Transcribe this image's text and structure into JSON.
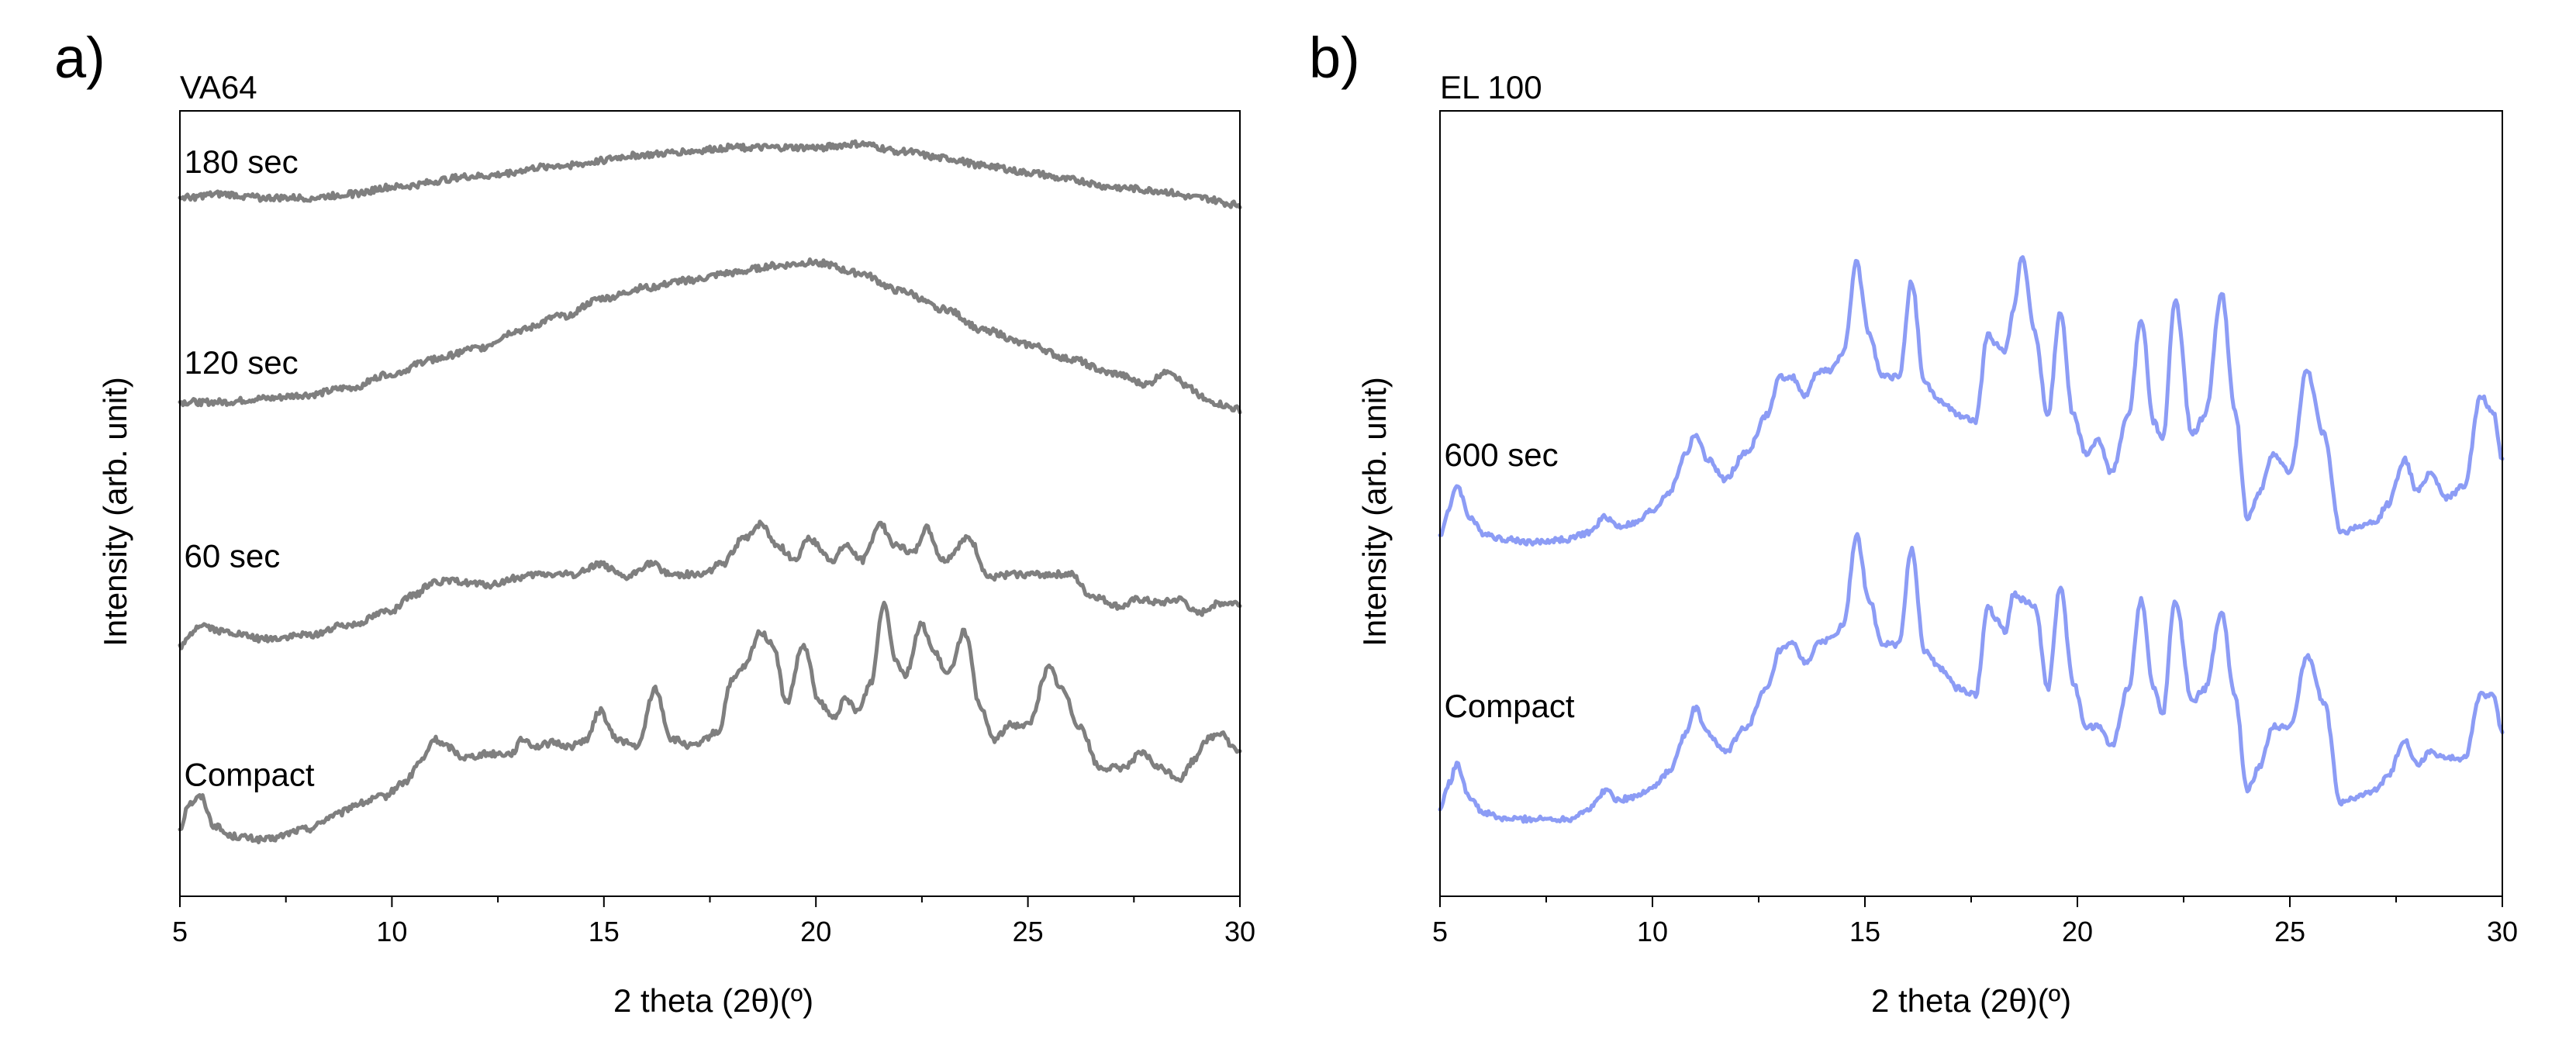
{
  "chart_data": [
    {
      "type": "line",
      "panel_label": "a)",
      "title": "VA64",
      "xlabel": "2 theta (2θ)(º)",
      "ylabel": "Intensity (arb. unit)",
      "xlim": [
        5,
        30
      ],
      "ylim": [
        0,
        100
      ],
      "xticks": [
        5,
        10,
        15,
        20,
        25,
        30
      ],
      "xtick_labels": [
        "5",
        "10",
        "15",
        "20",
        "25",
        "30"
      ],
      "yticks_shown": false,
      "color": "#7f7f7f",
      "series": [
        {
          "name": "Compact",
          "label_text": "Compact",
          "label_at": [
            5.1,
            11.5
          ],
          "x": [
            5,
            5.2,
            5.5,
            5.8,
            6.2,
            7,
            8,
            8.7,
            9.2,
            9.8,
            10.3,
            10.7,
            11.0,
            11.3,
            11.7,
            12.3,
            12.8,
            13.1,
            13.4,
            13.8,
            14.2,
            14.6,
            14.9,
            15.3,
            15.8,
            16.2,
            16.6,
            17.1,
            17.7,
            18.0,
            18.3,
            18.7,
            19.0,
            19.3,
            19.7,
            20.1,
            20.4,
            20.7,
            21.0,
            21.3,
            21.6,
            21.9,
            22.1,
            22.5,
            22.8,
            23.1,
            23.5,
            23.9,
            24.2,
            24.6,
            25.0,
            25.5,
            25.8,
            26.2,
            26.7,
            27.2,
            27.7,
            28.1,
            28.6,
            28.9,
            29.2,
            29.6,
            29.8,
            30
          ],
          "y": [
            5.5,
            9,
            10,
            6,
            4.5,
            4,
            5.5,
            7.5,
            9,
            10,
            12,
            15,
            18,
            17,
            15.5,
            16,
            16,
            18,
            17,
            17.5,
            17,
            18,
            22,
            18,
            17,
            25,
            18,
            17,
            19,
            26,
            28,
            33,
            31,
            23,
            31,
            23,
            21,
            23.5,
            22,
            26,
            37,
            29,
            27,
            34,
            30,
            27,
            33,
            22,
            18,
            20,
            20,
            28,
            25,
            20,
            14,
            14,
            16,
            14,
            12.5,
            15,
            18,
            19,
            17,
            16
          ]
        },
        {
          "name": "60 sec",
          "label_text": "60 sec",
          "label_at": [
            5.1,
            42
          ],
          "x": [
            5,
            5.5,
            6,
            7,
            8,
            9,
            10,
            10.5,
            11,
            11.5,
            12.3,
            13.0,
            13.5,
            14.3,
            14.9,
            15.5,
            16.1,
            16.6,
            17.3,
            17.8,
            18.3,
            18.7,
            19.1,
            19.5,
            19.8,
            20.4,
            20.7,
            21.1,
            21.5,
            21.9,
            22.3,
            22.6,
            23.0,
            23.6,
            24.1,
            24.6,
            25.2,
            25.5,
            26.0,
            26.5,
            27.2,
            27.6,
            28.1,
            28.6,
            29.0,
            29.5,
            30
          ],
          "y": [
            31,
            34,
            33,
            32,
            32.5,
            34,
            36,
            38,
            40,
            40,
            39.5,
            40.5,
            41,
            41,
            42.5,
            40.5,
            42.5,
            41,
            41,
            42.5,
            46,
            48,
            45,
            43,
            46,
            43,
            45,
            43,
            48,
            45,
            44,
            47.5,
            43,
            46,
            40.5,
            41,
            41,
            41,
            41,
            38,
            36.5,
            37.5,
            37,
            37.5,
            35.5,
            37,
            37
          ]
        },
        {
          "name": "120 sec",
          "label_text": "120 sec",
          "label_at": [
            5.1,
            69
          ],
          "x": [
            5,
            6,
            7,
            8,
            9,
            10,
            11,
            12,
            13,
            14,
            15,
            16,
            17,
            18,
            19,
            20,
            21,
            22,
            23,
            24,
            25,
            26,
            27,
            27.8,
            28.3,
            28.8,
            29.3,
            30
          ],
          "y": [
            65,
            65,
            65.5,
            66,
            67,
            69,
            71,
            72.5,
            75,
            77,
            79.5,
            81,
            82,
            83,
            84,
            84.5,
            83,
            80.5,
            78,
            75,
            73,
            71,
            69,
            67.5,
            69.5,
            67,
            65,
            64
          ]
        },
        {
          "name": "180 sec",
          "label_text": "180 sec",
          "label_at": [
            5.1,
            97
          ],
          "x": [
            5,
            6,
            7,
            8,
            9,
            10,
            12,
            14,
            16,
            17,
            18,
            19,
            20,
            21,
            22,
            23,
            24,
            25,
            26,
            27,
            28,
            29,
            30
          ],
          "y": [
            93.5,
            94,
            93.5,
            93.5,
            94,
            95,
            96.5,
            98,
            99.5,
            100,
            100.5,
            100.5,
            100.5,
            101,
            100,
            99,
            98,
            97,
            96,
            95,
            94.5,
            93.5,
            92.5
          ]
        }
      ]
    },
    {
      "type": "line",
      "panel_label": "b)",
      "title": "EL 100",
      "xlabel": "2 theta (2θ)(º)",
      "ylabel": "Intensity (arb. unit)",
      "xlim": [
        5,
        30
      ],
      "ylim": [
        0,
        100
      ],
      "xticks": [
        5,
        10,
        15,
        20,
        25,
        30
      ],
      "xtick_labels": [
        "5",
        "10",
        "15",
        "20",
        "25",
        "30"
      ],
      "yticks_shown": false,
      "color": "#8c9cf5",
      "series": [
        {
          "name": "Compact",
          "label_text": "Compact",
          "label_at": [
            5.1,
            19.5
          ],
          "x": [
            5,
            5.2,
            5.4,
            5.7,
            6.0,
            6.5,
            7.2,
            8.0,
            8.5,
            8.9,
            9.2,
            9.6,
            10.0,
            10.4,
            10.8,
            11.0,
            11.3,
            11.7,
            12.2,
            12.7,
            13.0,
            13.3,
            13.6,
            13.9,
            14.2,
            14.5,
            14.8,
            15.1,
            15.4,
            15.8,
            16.1,
            16.4,
            16.8,
            17.2,
            17.6,
            17.9,
            18.1,
            18.3,
            18.5,
            18.7,
            19.0,
            19.3,
            19.6,
            19.9,
            20.2,
            20.5,
            20.8,
            21.2,
            21.5,
            21.8,
            22.0,
            22.3,
            22.7,
            23.0,
            23.4,
            23.7,
            24.0,
            24.3,
            24.6,
            25.0,
            25.4,
            25.8,
            26.2,
            26.6,
            27.0,
            27.3,
            27.7,
            28.0,
            28.3,
            28.7,
            29.1,
            29.5,
            29.8,
            30
          ],
          "y": [
            5,
            9,
            12,
            7,
            4.5,
            3.5,
            3.5,
            3.5,
            5,
            8,
            6.5,
            7,
            8.5,
            11,
            17,
            21,
            17,
            14,
            18,
            24,
            30,
            31,
            28,
            31,
            32,
            34,
            48,
            38,
            31,
            31,
            46,
            30,
            27,
            24,
            23,
            37,
            35,
            33,
            39,
            38,
            37,
            24,
            40,
            25,
            18,
            18,
            15,
            24,
            38,
            24,
            20,
            38,
            22,
            24,
            36,
            23,
            8,
            12,
            18,
            18,
            29,
            22,
            6,
            7,
            8,
            10,
            16,
            12,
            14,
            13,
            13,
            23,
            23,
            17
          ]
        },
        {
          "name": "600 sec",
          "label_text": "600 sec",
          "label_at": [
            5.1,
            59
          ],
          "x": [
            5,
            5.2,
            5.4,
            5.7,
            6.0,
            6.5,
            7.2,
            8.0,
            8.5,
            8.9,
            9.2,
            9.6,
            10.0,
            10.4,
            10.8,
            11.0,
            11.3,
            11.7,
            12.2,
            12.7,
            13.0,
            13.3,
            13.6,
            13.9,
            14.2,
            14.5,
            14.8,
            15.1,
            15.4,
            15.8,
            16.1,
            16.4,
            16.8,
            17.2,
            17.6,
            17.9,
            18.1,
            18.3,
            18.5,
            18.7,
            19.0,
            19.3,
            19.6,
            19.9,
            20.2,
            20.5,
            20.8,
            21.2,
            21.5,
            21.8,
            22.0,
            22.3,
            22.7,
            23.0,
            23.4,
            23.7,
            24.0,
            24.3,
            24.6,
            25.0,
            25.4,
            25.8,
            26.2,
            26.6,
            27.0,
            27.3,
            27.7,
            28.0,
            28.3,
            28.7,
            29.1,
            29.5,
            29.8,
            30
          ],
          "y": [
            48,
            52,
            56,
            51,
            48.5,
            47.5,
            47,
            47.5,
            48.5,
            51,
            49.5,
            50,
            52,
            55,
            61,
            64,
            60,
            57,
            61,
            67,
            73,
            73,
            70,
            74,
            74,
            77,
            91,
            80,
            73,
            73,
            88,
            72,
            69,
            67,
            66,
            80,
            78,
            77,
            84,
            92,
            80,
            67,
            83,
            67,
            61,
            63,
            58,
            67,
            82,
            66,
            63,
            85,
            64,
            67,
            86,
            68,
            51,
            55,
            61,
            58,
            74,
            64,
            48.5,
            49.5,
            50,
            53,
            60,
            55,
            58,
            54,
            56,
            70,
            67,
            60
          ]
        }
      ]
    }
  ]
}
